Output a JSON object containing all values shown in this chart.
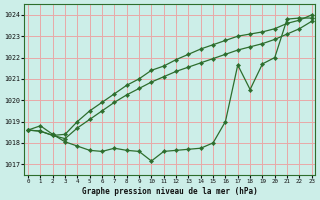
{
  "title": "Graphe pression niveau de la mer (hPa)",
  "bg_color": "#cceee8",
  "grid_color": "#e8a8a8",
  "line_color": "#2d6e2d",
  "xlim": [
    -0.3,
    23.3
  ],
  "ylim": [
    1016.5,
    1024.5
  ],
  "yticks": [
    1017,
    1018,
    1019,
    1020,
    1021,
    1022,
    1023,
    1024
  ],
  "xticks": [
    0,
    1,
    2,
    3,
    4,
    5,
    6,
    7,
    8,
    9,
    10,
    11,
    12,
    13,
    14,
    15,
    16,
    17,
    18,
    19,
    20,
    21,
    22,
    23
  ],
  "series1_x": [
    0,
    1,
    2,
    3,
    4,
    5,
    6,
    7,
    8,
    9,
    10,
    11,
    12,
    13,
    14,
    15,
    16,
    17,
    18,
    19,
    20,
    21,
    22,
    23
  ],
  "series1_y": [
    1018.6,
    1018.8,
    1018.4,
    1018.05,
    1017.85,
    1017.65,
    1017.6,
    1017.75,
    1017.65,
    1017.6,
    1017.15,
    1017.6,
    1017.65,
    1017.7,
    1017.75,
    1018.0,
    1019.0,
    1021.65,
    1020.5,
    1021.7,
    1022.0,
    1023.8,
    1023.85,
    1023.85
  ],
  "series2_x": [
    0,
    1,
    2,
    3,
    4,
    5,
    6,
    7,
    8,
    9,
    10,
    11,
    12,
    13,
    14,
    15,
    16,
    17,
    18,
    19,
    20,
    21,
    22,
    23
  ],
  "series2_y": [
    1018.6,
    1018.55,
    1018.35,
    1018.4,
    1019.0,
    1019.5,
    1019.9,
    1020.3,
    1020.7,
    1021.0,
    1021.4,
    1021.6,
    1021.9,
    1022.15,
    1022.4,
    1022.6,
    1022.8,
    1023.0,
    1023.1,
    1023.2,
    1023.35,
    1023.6,
    1023.75,
    1024.0
  ],
  "series3_x": [
    0,
    1,
    2,
    3,
    4,
    5,
    6,
    7,
    8,
    9,
    10,
    11,
    12,
    13,
    14,
    15,
    16,
    17,
    18,
    19,
    20,
    21,
    22,
    23
  ],
  "series3_y": [
    1018.6,
    1018.55,
    1018.35,
    1018.2,
    1018.7,
    1019.1,
    1019.5,
    1019.9,
    1020.25,
    1020.55,
    1020.85,
    1021.1,
    1021.35,
    1021.55,
    1021.75,
    1021.95,
    1022.15,
    1022.35,
    1022.5,
    1022.65,
    1022.85,
    1023.1,
    1023.35,
    1023.7
  ]
}
